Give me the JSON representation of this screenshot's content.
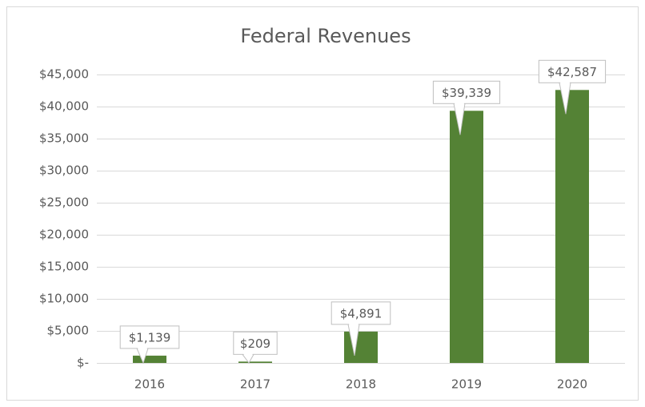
{
  "chart_data": {
    "type": "bar",
    "title": "Federal Revenues",
    "categories": [
      "2016",
      "2017",
      "2018",
      "2019",
      "2020"
    ],
    "values": [
      1139,
      209,
      4891,
      39339,
      42587
    ],
    "value_labels": [
      "$1,139",
      "$209",
      "$4,891",
      "$39,339",
      "$42,587"
    ],
    "color": "#548235",
    "ylim": [
      0,
      45000
    ],
    "yticks": [
      {
        "value": 0,
        "label": "$-"
      },
      {
        "value": 5000,
        "label": "$5,000"
      },
      {
        "value": 10000,
        "label": "$10,000"
      },
      {
        "value": 15000,
        "label": "$15,000"
      },
      {
        "value": 20000,
        "label": "$20,000"
      },
      {
        "value": 25000,
        "label": "$25,000"
      },
      {
        "value": 30000,
        "label": "$30,000"
      },
      {
        "value": 35000,
        "label": "$35,000"
      },
      {
        "value": 40000,
        "label": "$40,000"
      },
      {
        "value": 45000,
        "label": "$45,000"
      }
    ],
    "grid": true
  }
}
